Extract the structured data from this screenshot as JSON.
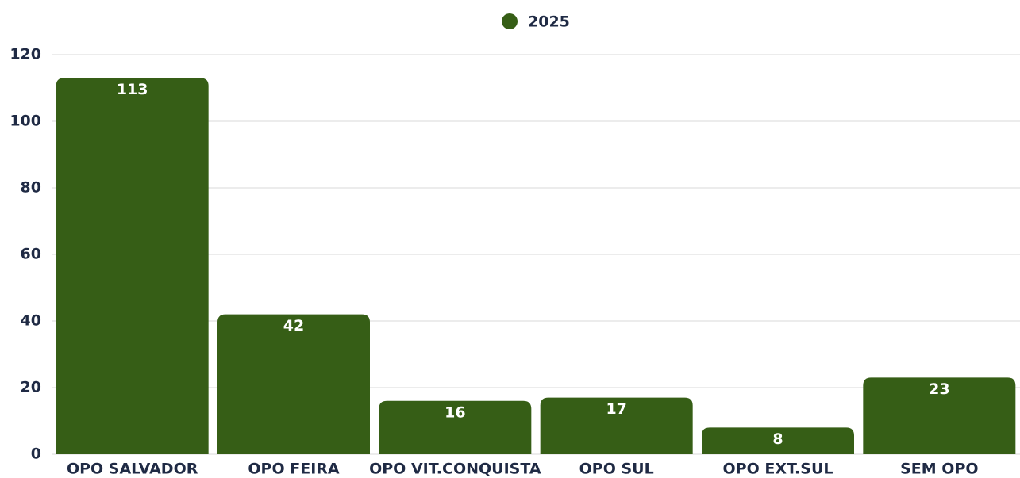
{
  "chart_data": {
    "type": "bar",
    "categories": [
      "OPO SALVADOR",
      "OPO FEIRA",
      "OPO VIT.CONQUISTA",
      "OPO SUL",
      "OPO EXT.SUL",
      "SEM OPO"
    ],
    "series": [
      {
        "name": "2025",
        "color": "#365e16",
        "values": [
          113,
          42,
          16,
          17,
          8,
          23
        ]
      }
    ],
    "ylim": [
      0,
      120
    ],
    "yticks": [
      0,
      20,
      40,
      60,
      80,
      100,
      120
    ],
    "grid": true,
    "legend": "top"
  }
}
